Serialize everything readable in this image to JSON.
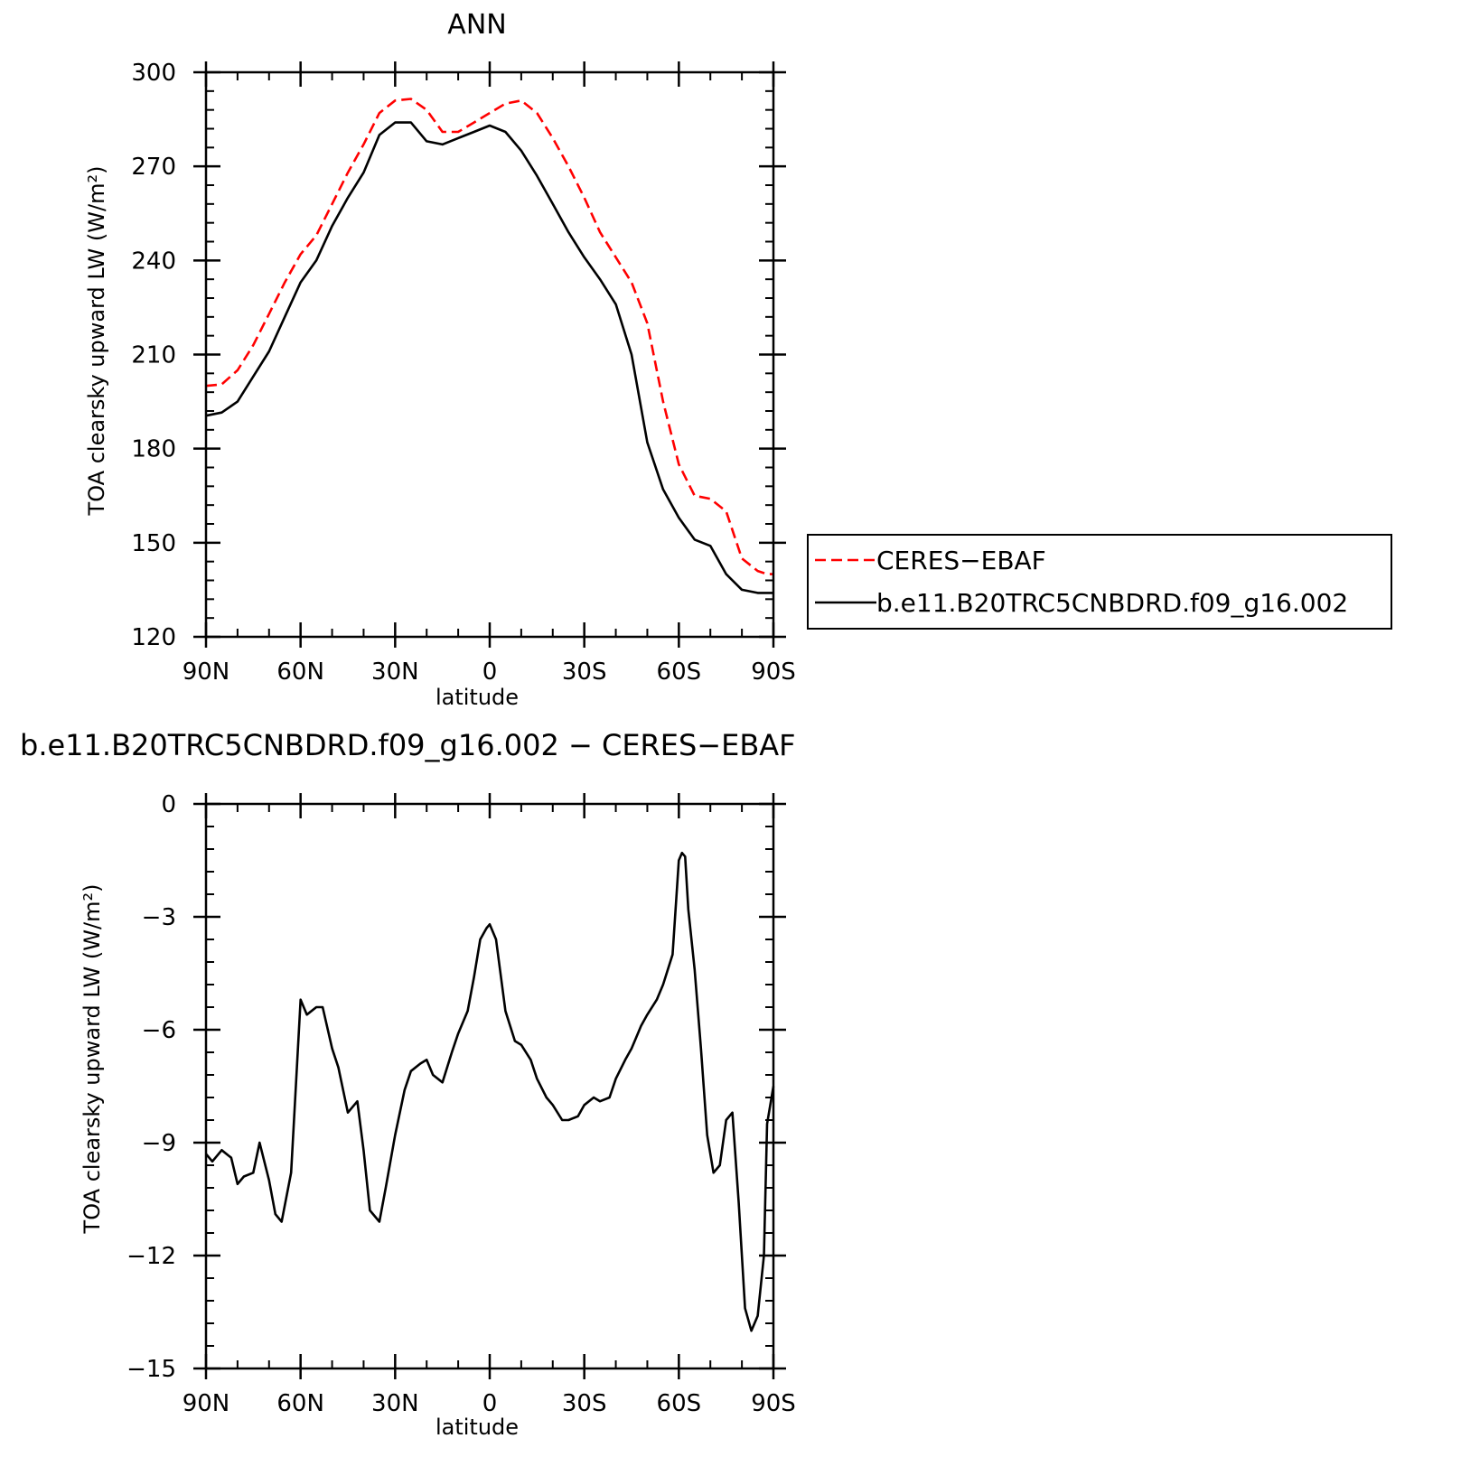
{
  "chart_data": [
    {
      "type": "line",
      "title": "ANN",
      "xlabel": "latitude",
      "ylabel": "TOA clearsky upward LW (W/m²)",
      "xlim": [
        90,
        -90
      ],
      "ylim": [
        120,
        300
      ],
      "x_ticks": [
        90,
        60,
        30,
        0,
        -30,
        -60,
        -90
      ],
      "x_tick_labels": [
        "90N",
        "60N",
        "30N",
        "0",
        "30S",
        "60S",
        "90S"
      ],
      "y_ticks": [
        120,
        150,
        180,
        210,
        240,
        270,
        300
      ],
      "y_tick_labels": [
        "120",
        "150",
        "180",
        "210",
        "240",
        "270",
        "300"
      ],
      "legend": {
        "placement": "right"
      },
      "series": [
        {
          "name": "CERES−EBAF",
          "color": "#ff0000",
          "dash": "dashed",
          "x": [
            90,
            85,
            80,
            75,
            70,
            65,
            60,
            55,
            50,
            45,
            40,
            35,
            30,
            25,
            20,
            15,
            10,
            5,
            0,
            -5,
            -10,
            -15,
            -20,
            -25,
            -30,
            -35,
            -40,
            -45,
            -50,
            -55,
            -60,
            -65,
            -70,
            -75,
            -80,
            -85,
            -88,
            -90
          ],
          "y": [
            200,
            200.5,
            205,
            213,
            223,
            233,
            242,
            248,
            258,
            268,
            277,
            287,
            291,
            291.5,
            288,
            281,
            281,
            284,
            287,
            290,
            291,
            287,
            279,
            270,
            260,
            249,
            241,
            233,
            220,
            195,
            175,
            165,
            164,
            160,
            145,
            141,
            140,
            140
          ]
        },
        {
          "name": "b.e11.B20TRC5CNBDRD.f09_g16.002",
          "color": "#000000",
          "dash": "solid",
          "x": [
            90,
            85,
            80,
            75,
            70,
            65,
            60,
            55,
            50,
            45,
            40,
            35,
            30,
            25,
            20,
            15,
            10,
            5,
            0,
            -5,
            -10,
            -15,
            -20,
            -25,
            -30,
            -35,
            -40,
            -45,
            -50,
            -55,
            -60,
            -65,
            -70,
            -75,
            -80,
            -85,
            -88,
            -90
          ],
          "y": [
            190.5,
            191.5,
            195,
            203,
            211,
            222,
            233,
            240,
            251,
            260,
            268,
            280,
            284,
            284,
            278,
            277,
            279,
            281,
            283,
            281,
            275,
            267,
            258,
            249,
            241,
            234,
            226,
            210,
            182,
            167,
            158,
            151,
            149,
            140,
            135,
            134,
            134,
            134
          ]
        }
      ]
    },
    {
      "type": "line",
      "title": "b.e11.B20TRC5CNBDRD.f09_g16.002 − CERES−EBAF",
      "xlabel": "latitude",
      "ylabel": "TOA clearsky upward LW (W/m²)",
      "xlim": [
        90,
        -90
      ],
      "ylim": [
        -15,
        0
      ],
      "x_ticks": [
        90,
        60,
        30,
        0,
        -30,
        -60,
        -90
      ],
      "x_tick_labels": [
        "90N",
        "60N",
        "30N",
        "0",
        "30S",
        "60S",
        "90S"
      ],
      "y_ticks": [
        -15,
        -12,
        -9,
        -6,
        -3,
        0
      ],
      "y_tick_labels": [
        "−15",
        "−12",
        "−9",
        "−6",
        "−3",
        "0"
      ],
      "series": [
        {
          "name": "",
          "color": "#000000",
          "dash": "solid",
          "x": [
            90,
            88,
            85,
            82,
            80,
            78,
            75,
            73,
            70,
            68,
            66,
            63,
            60,
            58,
            55,
            53,
            50,
            48,
            45,
            42,
            40,
            38,
            35,
            33,
            30,
            27,
            25,
            22,
            20,
            18,
            15,
            12,
            10,
            7,
            5,
            3,
            1,
            0,
            -2,
            -5,
            -8,
            -10,
            -13,
            -15,
            -18,
            -20,
            -23,
            -25,
            -28,
            -30,
            -33,
            -35,
            -38,
            -40,
            -43,
            -45,
            -48,
            -50,
            -53,
            -55,
            -58,
            -60,
            -61,
            -62,
            -63,
            -65,
            -67,
            -69,
            -71,
            -73,
            -75,
            -77,
            -79,
            -81,
            -83,
            -85,
            -87,
            -88,
            -90
          ],
          "y": [
            -9.3,
            -9.5,
            -9.2,
            -9.4,
            -10.1,
            -9.9,
            -9.8,
            -9.0,
            -10.0,
            -10.9,
            -11.1,
            -9.8,
            -5.2,
            -5.6,
            -5.4,
            -5.4,
            -6.5,
            -7.0,
            -8.2,
            -7.9,
            -9.2,
            -10.8,
            -11.1,
            -10.2,
            -8.8,
            -7.6,
            -7.1,
            -6.9,
            -6.8,
            -7.2,
            -7.4,
            -6.6,
            -6.1,
            -5.5,
            -4.6,
            -3.6,
            -3.3,
            -3.2,
            -3.6,
            -5.5,
            -6.3,
            -6.4,
            -6.8,
            -7.3,
            -7.8,
            -8.0,
            -8.4,
            -8.4,
            -8.3,
            -8.0,
            -7.8,
            -7.9,
            -7.8,
            -7.3,
            -6.8,
            -6.5,
            -5.9,
            -5.6,
            -5.2,
            -4.8,
            -4.0,
            -1.5,
            -1.3,
            -1.4,
            -2.8,
            -4.4,
            -6.5,
            -8.8,
            -9.8,
            -9.6,
            -8.4,
            -8.2,
            -10.6,
            -13.4,
            -14.0,
            -13.6,
            -12.0,
            -8.5,
            -7.5
          ]
        }
      ]
    }
  ]
}
